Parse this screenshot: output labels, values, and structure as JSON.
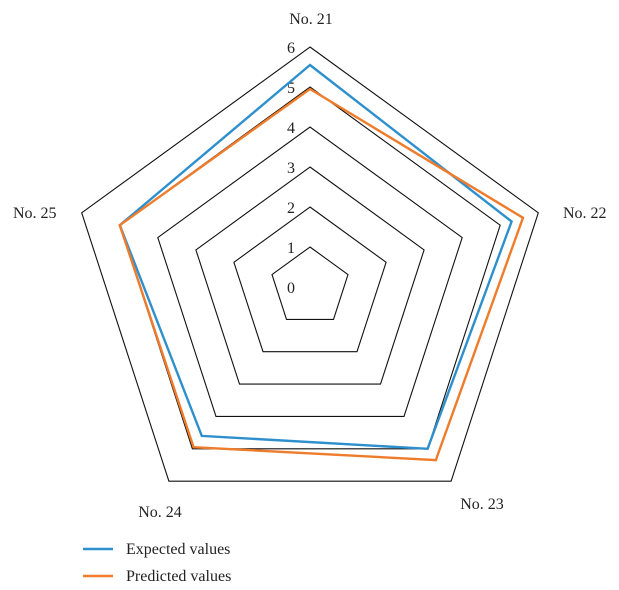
{
  "colors": {
    "expected": "#2e8fcd",
    "predicted": "#ef7c2b",
    "grid": "#111111"
  },
  "chart_data": {
    "type": "radar",
    "categories": [
      "No. 21",
      "No. 22",
      "No. 23",
      "No. 24",
      "No. 25"
    ],
    "rlim": [
      0,
      6
    ],
    "ticks": [
      "0",
      "1",
      "2",
      "3",
      "4",
      "5",
      "6"
    ],
    "series": [
      {
        "name": "Expected values",
        "values": [
          5.55,
          5.3,
          5.0,
          4.6,
          5.0
        ]
      },
      {
        "name": "Predicted values",
        "values": [
          4.95,
          5.6,
          5.35,
          4.95,
          5.0
        ]
      }
    ],
    "legend_position": "bottom-left",
    "grid": true
  }
}
